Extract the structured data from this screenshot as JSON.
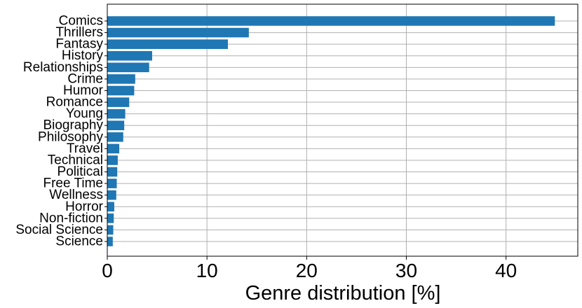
{
  "chart_data": {
    "type": "bar",
    "orientation": "horizontal",
    "categories": [
      "Comics",
      "Thrillers",
      "Fantasy",
      "History",
      "Relationships",
      "Crime",
      "Humor",
      "Romance",
      "Young",
      "Biography",
      "Philosophy",
      "Travel",
      "Technical",
      "Political",
      "Free Time",
      "Wellness",
      "Horror",
      "Non-fiction",
      "Social Science",
      "Science"
    ],
    "values": [
      44.9,
      14.2,
      12.1,
      4.5,
      4.2,
      2.8,
      2.7,
      2.2,
      1.8,
      1.7,
      1.6,
      1.2,
      1.05,
      1.0,
      0.95,
      0.9,
      0.7,
      0.65,
      0.6,
      0.55
    ],
    "xlabel": "Genre distribution [%]",
    "ylabel": "",
    "xlim": [
      0,
      47.2
    ],
    "xticks": [
      0,
      10,
      20,
      30,
      40
    ],
    "grid": true,
    "colors": {
      "bar": "#1f77b4",
      "grid": "#b0b0b0",
      "axes": "#000000"
    }
  }
}
